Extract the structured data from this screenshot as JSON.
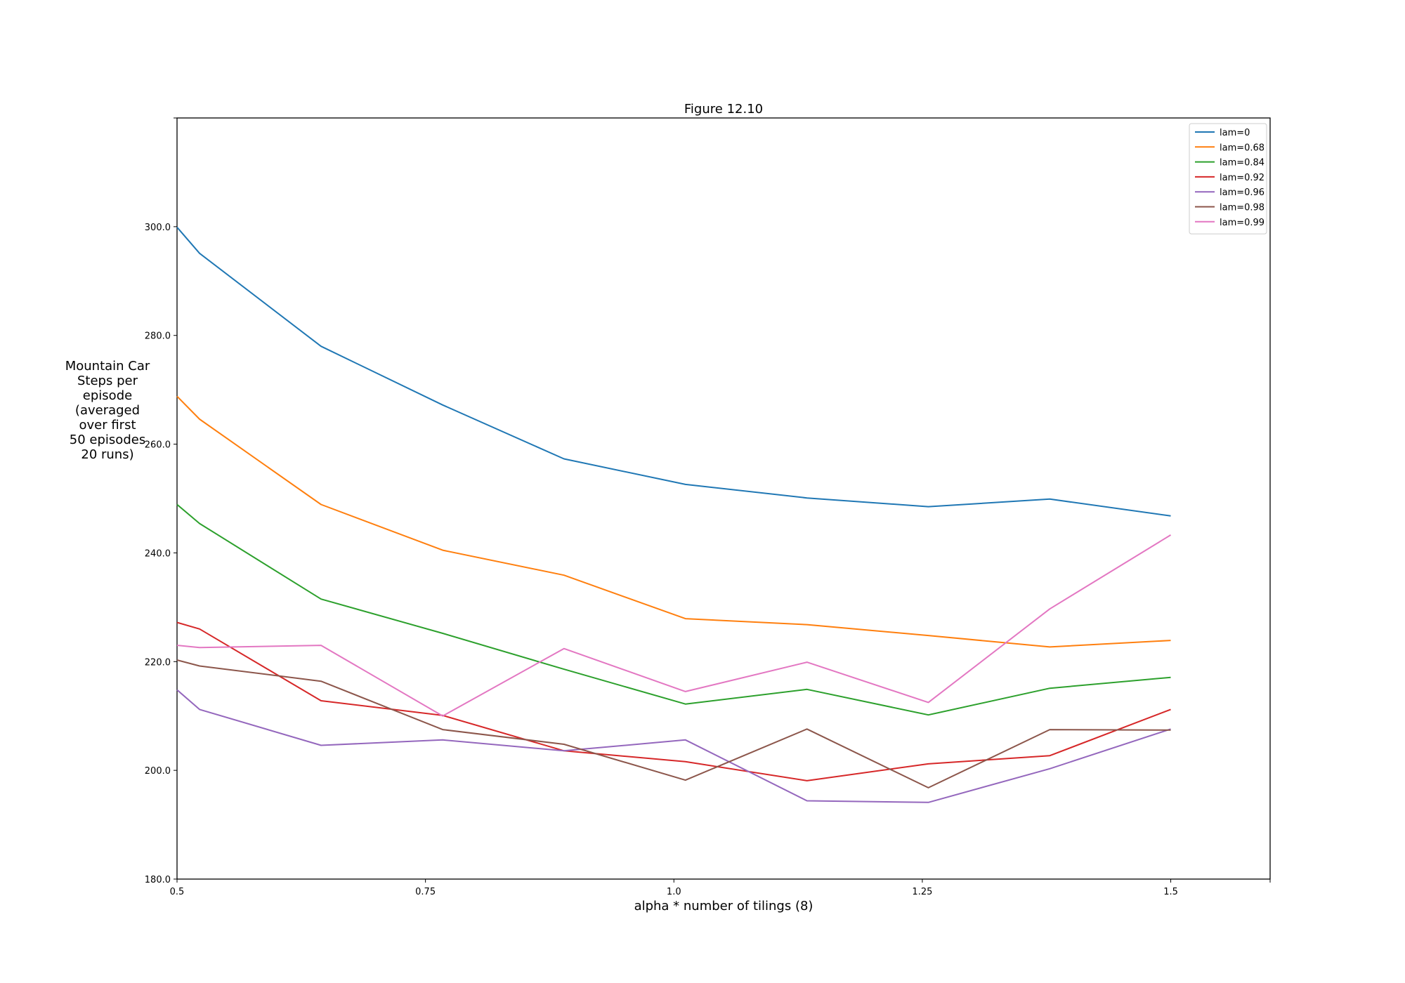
{
  "chart_data": {
    "type": "line",
    "title": "Figure 12.10",
    "xlabel": "alpha * number of tilings (8)",
    "ylabel_lines": [
      "Mountain Car",
      "Steps per",
      "episode",
      "(averaged",
      "over first",
      "50 episodes",
      "20 runs)"
    ],
    "xlim": [
      0.5,
      1.6
    ],
    "ylim": [
      180,
      320
    ],
    "x_ticks": [
      0.5,
      0.75,
      1.0,
      1.25,
      1.5
    ],
    "x_tick_labels": [
      "0.5",
      "0.75",
      "1.0",
      "1.25",
      "1.5"
    ],
    "y_ticks": [
      180,
      200,
      220,
      240,
      260,
      280,
      300
    ],
    "y_tick_labels": [
      "180.0",
      "200.0",
      "220.0",
      "240.0",
      "260.0",
      "280.0",
      "300.0"
    ],
    "grid": false,
    "legend_position": "top-right",
    "x": [
      0.5,
      0.5227,
      0.6449,
      0.7674,
      0.8894,
      1.0116,
      1.1339,
      1.2561,
      1.3783,
      1.5
    ],
    "series": [
      {
        "name": "lam=0",
        "color": "#1f77b4",
        "values": [
          299.9,
          295.1,
          278.0,
          267.2,
          257.3,
          252.6,
          250.1,
          248.5,
          249.9,
          246.8
        ]
      },
      {
        "name": "lam=0.68",
        "color": "#ff7f0e",
        "values": [
          268.8,
          264.6,
          248.9,
          240.5,
          235.9,
          227.9,
          226.8,
          224.8,
          222.7,
          223.9
        ]
      },
      {
        "name": "lam=0.84",
        "color": "#2ca02c",
        "values": [
          248.9,
          245.4,
          231.5,
          225.2,
          218.6,
          212.2,
          214.9,
          210.2,
          215.1,
          217.1
        ]
      },
      {
        "name": "lam=0.92",
        "color": "#d62728",
        "values": [
          227.2,
          226.0,
          212.8,
          210.1,
          203.6,
          201.6,
          198.1,
          201.2,
          202.7,
          211.2
        ]
      },
      {
        "name": "lam=0.96",
        "color": "#9467bd",
        "values": [
          214.8,
          211.2,
          204.6,
          205.6,
          203.6,
          205.6,
          194.4,
          194.1,
          200.3,
          207.6
        ]
      },
      {
        "name": "lam=0.98",
        "color": "#8c564b",
        "values": [
          220.3,
          219.2,
          216.4,
          207.5,
          204.8,
          198.2,
          207.6,
          196.8,
          207.5,
          207.4
        ]
      },
      {
        "name": "lam=0.99",
        "color": "#e377c2",
        "values": [
          223.0,
          222.6,
          223.0,
          210.0,
          222.4,
          214.5,
          219.9,
          212.5,
          229.7,
          243.3
        ]
      }
    ]
  }
}
